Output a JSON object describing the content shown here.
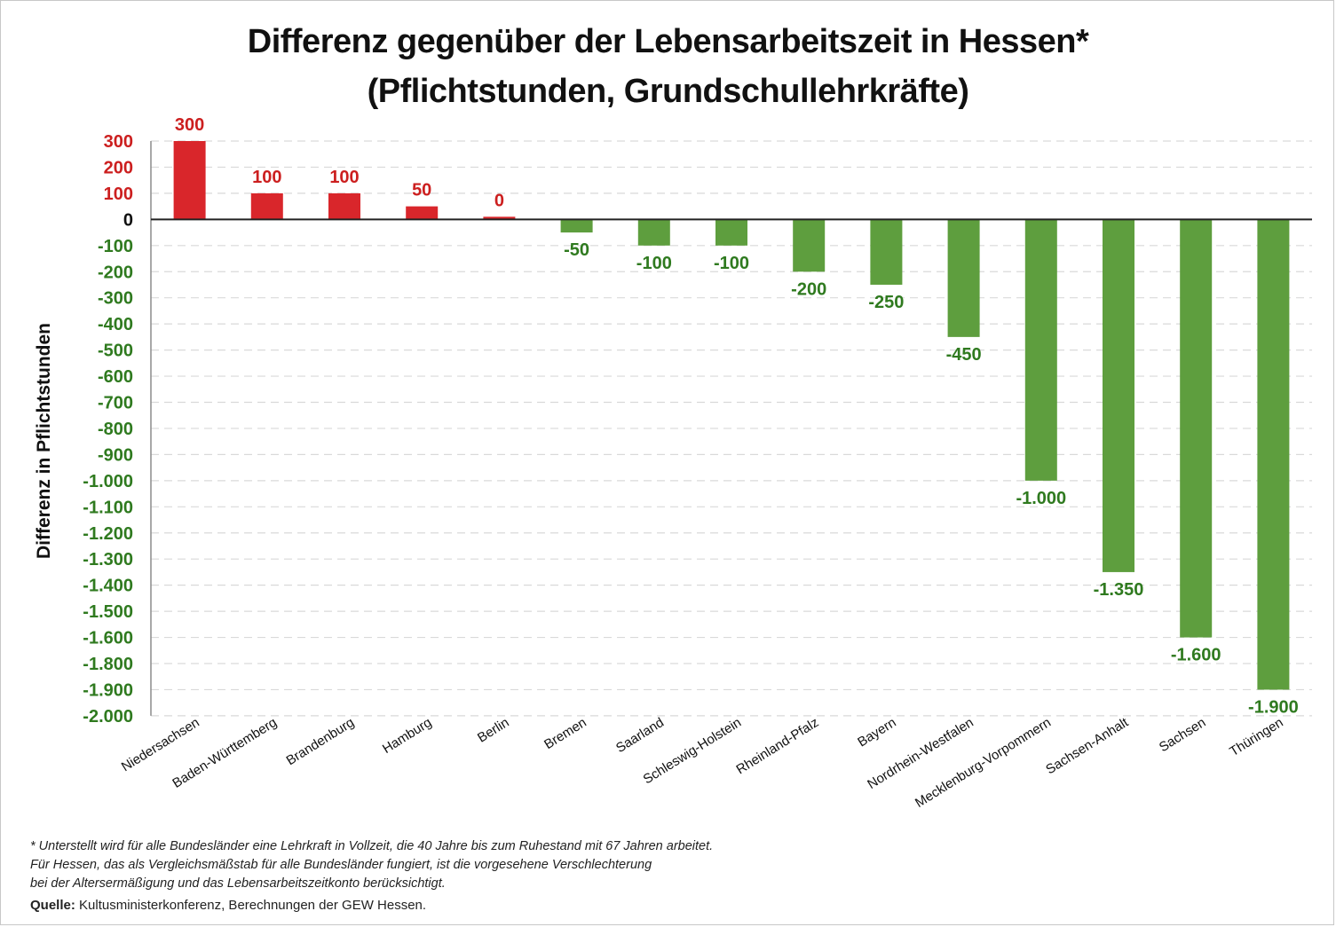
{
  "chart_data": {
    "type": "bar",
    "title": "Differenz gegenüber der Lebensarbeitszeit in Hessen*",
    "subtitle": "(Pflichtstunden, Grundschullehrkräfte)",
    "xlabel": "",
    "ylabel": "Differenz in Pflichtstunden",
    "categories": [
      "Niedersachsen",
      "Baden-Württemberg",
      "Brandenburg",
      "Hamburg",
      "Berlin",
      "Bremen",
      "Saarland",
      "Schleswig-Holstein",
      "Rheinland-Pfalz",
      "Bayern",
      "Nordrhein-Westfalen",
      "Mecklenburg-Vorpommern",
      "Sachsen-Anhalt",
      "Sachsen",
      "Thüringen"
    ],
    "values": [
      300,
      100,
      100,
      50,
      0,
      -50,
      -100,
      -100,
      -200,
      -250,
      -450,
      -1000,
      -1350,
      -1600,
      -1900
    ],
    "data_labels": [
      "300",
      "100",
      "100",
      "50",
      "0",
      "-50",
      "-100",
      "-100",
      "-200",
      "-250",
      "-450",
      "-1.000",
      "-1.350",
      "-1.600",
      "-1.900"
    ],
    "y_ticks": [
      300,
      200,
      100,
      0,
      -100,
      -200,
      -300,
      -400,
      -500,
      -600,
      -700,
      -800,
      -900,
      -1000,
      -1100,
      -1200,
      -1300,
      -1400,
      -1500,
      -1600,
      -1800,
      -1900,
      -2000
    ],
    "y_tick_labels": [
      "300",
      "200",
      "100",
      "0",
      "-100",
      "-200",
      "-300",
      "-400",
      "-500",
      "-600",
      "-700",
      "-800",
      "-900",
      "-1.000",
      "-1.100",
      "-1.200",
      "-1.300",
      "-1.400",
      "-1.500",
      "-1.600",
      "-1.800",
      "-1.900",
      "-2.000"
    ],
    "ylim": [
      -2000,
      300
    ],
    "grid": true,
    "legend": "none",
    "colors": {
      "positive": "#d9262b",
      "negative": "#5e9e3e",
      "positive_label": "#cc1f1f",
      "negative_label": "#2f7a1f",
      "zero_label": "#111111"
    }
  },
  "footnote": {
    "lines": [
      "* Unterstellt wird für alle Bundesländer eine Lehrkraft in Vollzeit, die 40 Jahre bis zum Ruhestand mit 67 Jahren arbeitet.",
      "Für Hessen, das als Vergleichsmäßstab für alle Bundesländer fungiert, ist die vorgesehene Verschlechterung",
      "bei der Altersermäßigung und das Lebensarbeitszeitkonto berücksichtigt."
    ],
    "source_label": "Quelle:",
    "source_text": " Kultusministerkonferenz, Berechnungen der GEW Hessen."
  }
}
